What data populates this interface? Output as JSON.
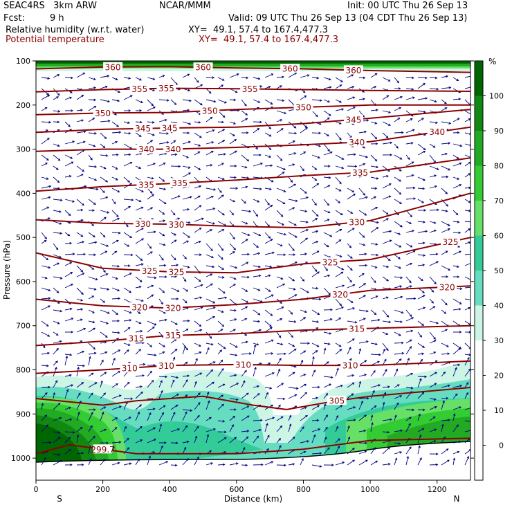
{
  "header": {
    "model": "SEAC4RS   3km ARW",
    "org": "NCAR/MMM",
    "init": "Init: 00 UTC Thu 26 Sep 13",
    "fcst_label": "Fcst:",
    "fcst_value": "9 h",
    "valid": "Valid: 09 UTC Thu 26 Sep 13 (04 CDT Thu 26 Sep 13)",
    "field1": "Relative humidity (w.r.t. water)",
    "field1_xy": "XY=  49.1, 57.4 to 167.4,477.3",
    "field2": "Potential temperature",
    "field2_xy": "XY=  49.1, 57.4 to 167.4,477.3"
  },
  "colors": {
    "theta": "#8b0000",
    "wind": "#000080",
    "rh_30": "#ccf5e6",
    "rh_40": "#66ddc0",
    "rh_50": "#33cc99",
    "rh_60": "#66e066",
    "rh_70": "#33cc33",
    "rh_80": "#22aa22",
    "rh_90": "#118811",
    "rh_100": "#006600"
  },
  "chart_data": {
    "type": "cross-section",
    "xlabel": "Distance (km)",
    "ylabel": "Pressure (hPa)",
    "xlim": [
      0,
      1300
    ],
    "ylim": [
      1050,
      100
    ],
    "x_ticks": [
      0,
      200,
      400,
      600,
      800,
      1000,
      1200
    ],
    "y_ticks": [
      100,
      200,
      300,
      400,
      500,
      600,
      700,
      800,
      900,
      1000
    ],
    "x_end_labels": {
      "left": "S",
      "right": "N"
    },
    "colorbar": {
      "unit": "%",
      "ticks": [
        100,
        90,
        80,
        70,
        60,
        50,
        40,
        30,
        20,
        10,
        0
      ]
    },
    "theta_contours": [
      {
        "value": 360,
        "points": [
          [
            0,
            118
          ],
          [
            200,
            114
          ],
          [
            400,
            113
          ],
          [
            600,
            116
          ],
          [
            800,
            118
          ],
          [
            1000,
            122
          ],
          [
            1300,
            126
          ]
        ],
        "labels": [
          [
            230,
            "360"
          ],
          [
            500,
            "360"
          ],
          [
            760,
            "360"
          ],
          [
            950,
            "360"
          ]
        ]
      },
      {
        "value": 355,
        "points": [
          [
            0,
            170
          ],
          [
            200,
            165
          ],
          [
            400,
            162
          ],
          [
            600,
            163
          ],
          [
            800,
            165
          ],
          [
            1000,
            167
          ],
          [
            1300,
            169
          ]
        ],
        "labels": [
          [
            310,
            "355"
          ],
          [
            390,
            "355"
          ],
          [
            640,
            "355"
          ]
        ]
      },
      {
        "value": 350,
        "points": [
          [
            0,
            222
          ],
          [
            200,
            218
          ],
          [
            400,
            217
          ],
          [
            600,
            210
          ],
          [
            800,
            205
          ],
          [
            1000,
            200
          ],
          [
            1300,
            200
          ]
        ],
        "labels": [
          [
            200,
            "350"
          ],
          [
            520,
            "350"
          ],
          [
            800,
            "350"
          ]
        ]
      },
      {
        "value": 345,
        "points": [
          [
            0,
            262
          ],
          [
            200,
            255
          ],
          [
            400,
            252
          ],
          [
            600,
            250
          ],
          [
            800,
            242
          ],
          [
            1000,
            230
          ],
          [
            1300,
            210
          ]
        ],
        "labels": [
          [
            320,
            "345"
          ],
          [
            400,
            "345"
          ],
          [
            950,
            "345"
          ]
        ]
      },
      {
        "value": 340,
        "points": [
          [
            0,
            305
          ],
          [
            200,
            300
          ],
          [
            400,
            300
          ],
          [
            600,
            296
          ],
          [
            800,
            290
          ],
          [
            1000,
            283
          ],
          [
            1300,
            250
          ]
        ],
        "labels": [
          [
            330,
            "340"
          ],
          [
            410,
            "340"
          ],
          [
            960,
            "340"
          ],
          [
            1200,
            "340"
          ]
        ]
      },
      {
        "value": 335,
        "points": [
          [
            0,
            395
          ],
          [
            200,
            385
          ],
          [
            400,
            378
          ],
          [
            600,
            370
          ],
          [
            800,
            360
          ],
          [
            1000,
            352
          ],
          [
            1300,
            320
          ]
        ],
        "labels": [
          [
            330,
            "335"
          ],
          [
            430,
            "335"
          ],
          [
            970,
            "335"
          ]
        ]
      },
      {
        "value": 330,
        "points": [
          [
            0,
            460
          ],
          [
            200,
            468
          ],
          [
            400,
            470
          ],
          [
            600,
            475
          ],
          [
            800,
            478
          ],
          [
            1000,
            462
          ],
          [
            1300,
            400
          ]
        ],
        "labels": [
          [
            320,
            "330"
          ],
          [
            420,
            "330"
          ],
          [
            960,
            "330"
          ]
        ]
      },
      {
        "value": 325,
        "points": [
          [
            0,
            535
          ],
          [
            200,
            570
          ],
          [
            400,
            578
          ],
          [
            600,
            580
          ],
          [
            800,
            560
          ],
          [
            1000,
            550
          ],
          [
            1300,
            500
          ]
        ],
        "labels": [
          [
            340,
            "325"
          ],
          [
            420,
            "325"
          ],
          [
            880,
            "325"
          ],
          [
            1240,
            "325"
          ]
        ]
      },
      {
        "value": 320,
        "points": [
          [
            0,
            640
          ],
          [
            200,
            655
          ],
          [
            400,
            660
          ],
          [
            600,
            652
          ],
          [
            800,
            640
          ],
          [
            1000,
            620
          ],
          [
            1300,
            610
          ]
        ],
        "labels": [
          [
            310,
            "320"
          ],
          [
            410,
            "320"
          ],
          [
            910,
            "320"
          ],
          [
            1230,
            "320"
          ]
        ]
      },
      {
        "value": 315,
        "points": [
          [
            0,
            745
          ],
          [
            200,
            735
          ],
          [
            400,
            722
          ],
          [
            600,
            718
          ],
          [
            800,
            710
          ],
          [
            1000,
            706
          ],
          [
            1300,
            700
          ]
        ],
        "labels": [
          [
            300,
            "315"
          ],
          [
            410,
            "315"
          ],
          [
            960,
            "315"
          ]
        ]
      },
      {
        "value": 310,
        "points": [
          [
            0,
            808
          ],
          [
            200,
            800
          ],
          [
            400,
            790
          ],
          [
            600,
            788
          ],
          [
            800,
            790
          ],
          [
            1000,
            790
          ],
          [
            1300,
            780
          ]
        ],
        "labels": [
          [
            280,
            "310"
          ],
          [
            390,
            "310"
          ],
          [
            620,
            "310"
          ],
          [
            940,
            "310"
          ]
        ]
      },
      {
        "value": 305,
        "points": [
          [
            0,
            865
          ],
          [
            200,
            880
          ],
          [
            300,
            870
          ],
          [
            500,
            860
          ],
          [
            650,
            880
          ],
          [
            750,
            890
          ],
          [
            900,
            870
          ],
          [
            1000,
            860
          ],
          [
            1300,
            840
          ]
        ],
        "labels": [
          [
            900,
            "305"
          ]
        ]
      },
      {
        "value": 299.7,
        "points": [
          [
            0,
            990
          ],
          [
            100,
            970
          ],
          [
            200,
            980
          ],
          [
            300,
            990
          ],
          [
            600,
            990
          ],
          [
            800,
            980
          ],
          [
            1000,
            960
          ],
          [
            1300,
            955
          ]
        ],
        "labels": [
          [
            200,
            "299.7"
          ]
        ]
      }
    ]
  }
}
